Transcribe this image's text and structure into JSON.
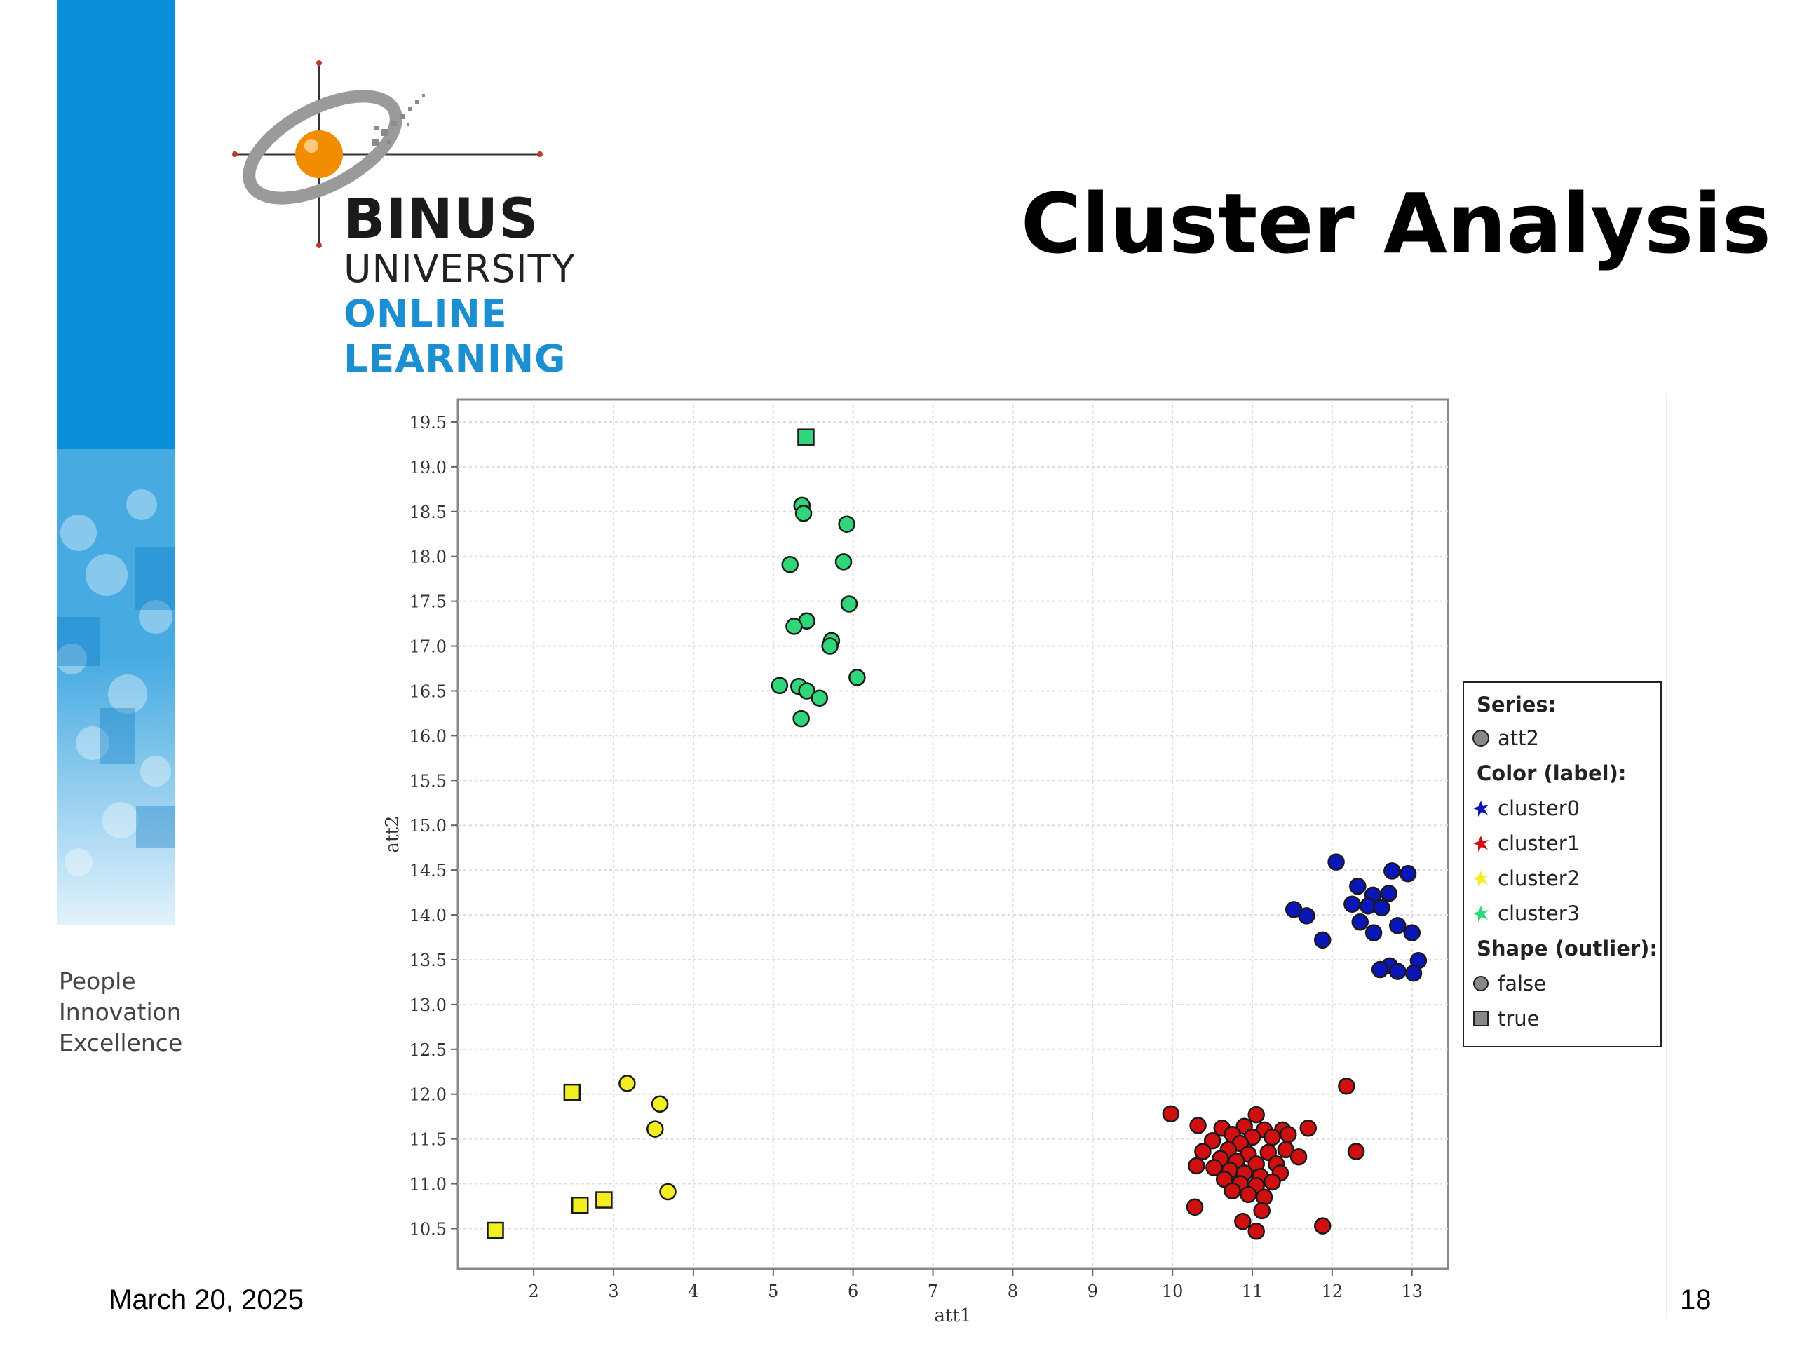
{
  "slide": {
    "title": "Cluster Analysis",
    "date": "March 20, 2025",
    "page_number": "18",
    "tagline": [
      "People",
      "Innovation",
      "Excellence"
    ]
  },
  "logo": {
    "name": "BINUS",
    "line2": "UNIVERSITY",
    "line3": "ONLINE",
    "line4": "LEARNING",
    "brand_blue": "#1b8fd1",
    "accent_orange": "#f28c00"
  },
  "legend": {
    "series_title": "Series:",
    "series": [
      {
        "name": "att2",
        "icon": "circle",
        "color": "#888888"
      }
    ],
    "color_title": "Color (label):",
    "colors": [
      {
        "name": "cluster0",
        "color": "#0b16b8"
      },
      {
        "name": "cluster1",
        "color": "#d01010"
      },
      {
        "name": "cluster2",
        "color": "#f2ee22"
      },
      {
        "name": "cluster3",
        "color": "#2fd67a"
      }
    ],
    "shape_title": "Shape (outlier):",
    "shapes": [
      {
        "name": "false",
        "icon": "circle"
      },
      {
        "name": "true",
        "icon": "square"
      }
    ]
  },
  "chart_data": {
    "type": "scatter",
    "xlabel": "att1",
    "ylabel": "att2",
    "xlim": [
      1.05,
      13.45
    ],
    "ylim": [
      10.05,
      19.75
    ],
    "x_ticks": [
      2,
      3,
      4,
      5,
      6,
      7,
      8,
      9,
      10,
      11,
      12,
      13
    ],
    "y_ticks": [
      "10.5",
      "11.0",
      "11.5",
      "12.0",
      "12.5",
      "13.0",
      "13.5",
      "14.0",
      "14.5",
      "15.0",
      "15.5",
      "16.0",
      "16.5",
      "17.0",
      "17.5",
      "18.0",
      "18.5",
      "19.0",
      "19.5"
    ],
    "grid": true,
    "legend_position": "right",
    "series": [
      {
        "name": "cluster0",
        "color": "#0b16b8",
        "points": [
          [
            12.05,
            14.59
          ],
          [
            12.75,
            14.49
          ],
          [
            12.95,
            14.46
          ],
          [
            12.32,
            14.32
          ],
          [
            12.51,
            14.22
          ],
          [
            12.71,
            14.24
          ],
          [
            12.25,
            14.12
          ],
          [
            12.45,
            14.1
          ],
          [
            12.62,
            14.08
          ],
          [
            11.52,
            14.06
          ],
          [
            11.68,
            13.99
          ],
          [
            12.35,
            13.92
          ],
          [
            12.82,
            13.88
          ],
          [
            12.52,
            13.8
          ],
          [
            13.0,
            13.8
          ],
          [
            11.88,
            13.72
          ],
          [
            13.08,
            13.49
          ],
          [
            12.72,
            13.43
          ],
          [
            12.6,
            13.39
          ],
          [
            12.82,
            13.37
          ],
          [
            13.02,
            13.35
          ]
        ],
        "outliers": []
      },
      {
        "name": "cluster1",
        "color": "#d01010",
        "points": [
          [
            12.18,
            12.09
          ],
          [
            9.98,
            11.78
          ],
          [
            11.05,
            11.77
          ],
          [
            10.32,
            11.65
          ],
          [
            10.62,
            11.62
          ],
          [
            10.9,
            11.64
          ],
          [
            11.15,
            11.6
          ],
          [
            11.38,
            11.6
          ],
          [
            11.7,
            11.62
          ],
          [
            10.75,
            11.55
          ],
          [
            11.0,
            11.52
          ],
          [
            11.25,
            11.52
          ],
          [
            11.45,
            11.55
          ],
          [
            10.5,
            11.48
          ],
          [
            10.85,
            11.45
          ],
          [
            12.3,
            11.36
          ],
          [
            10.38,
            11.36
          ],
          [
            10.7,
            11.38
          ],
          [
            10.95,
            11.33
          ],
          [
            11.2,
            11.35
          ],
          [
            11.42,
            11.38
          ],
          [
            11.58,
            11.3
          ],
          [
            10.6,
            11.28
          ],
          [
            10.8,
            11.25
          ],
          [
            11.05,
            11.22
          ],
          [
            11.3,
            11.22
          ],
          [
            10.3,
            11.2
          ],
          [
            10.52,
            11.18
          ],
          [
            10.72,
            11.15
          ],
          [
            10.9,
            11.12
          ],
          [
            11.1,
            11.08
          ],
          [
            11.35,
            11.12
          ],
          [
            10.65,
            11.05
          ],
          [
            10.85,
            11.0
          ],
          [
            11.05,
            10.98
          ],
          [
            11.25,
            11.02
          ],
          [
            10.75,
            10.92
          ],
          [
            10.95,
            10.88
          ],
          [
            11.15,
            10.85
          ],
          [
            10.28,
            10.74
          ],
          [
            11.12,
            10.7
          ],
          [
            10.88,
            10.58
          ],
          [
            11.88,
            10.53
          ],
          [
            11.05,
            10.47
          ]
        ],
        "outliers": []
      },
      {
        "name": "cluster2",
        "color": "#f2ee22",
        "points": [
          [
            3.17,
            12.12
          ],
          [
            3.58,
            11.89
          ],
          [
            3.52,
            11.61
          ],
          [
            3.68,
            10.91
          ]
        ],
        "outliers": [
          [
            2.48,
            12.02
          ],
          [
            2.88,
            10.82
          ],
          [
            2.58,
            10.76
          ],
          [
            1.52,
            10.48
          ]
        ]
      },
      {
        "name": "cluster3",
        "color": "#2fd67a",
        "points": [
          [
            5.36,
            18.57
          ],
          [
            5.38,
            18.48
          ],
          [
            5.92,
            18.36
          ],
          [
            5.21,
            17.91
          ],
          [
            5.88,
            17.94
          ],
          [
            5.95,
            17.47
          ],
          [
            5.42,
            17.28
          ],
          [
            5.26,
            17.22
          ],
          [
            5.73,
            17.06
          ],
          [
            5.71,
            17.0
          ],
          [
            6.05,
            16.65
          ],
          [
            5.08,
            16.56
          ],
          [
            5.32,
            16.55
          ],
          [
            5.42,
            16.5
          ],
          [
            5.58,
            16.42
          ],
          [
            5.35,
            16.19
          ]
        ],
        "outliers": [
          [
            5.41,
            19.33
          ]
        ]
      }
    ]
  }
}
